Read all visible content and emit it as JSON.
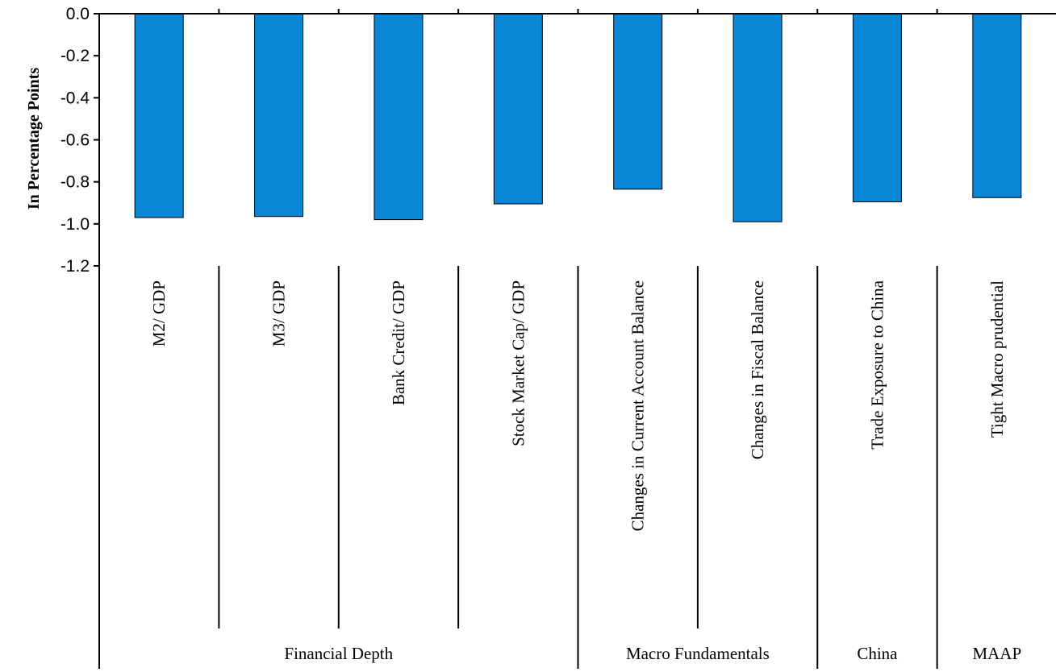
{
  "chart_data": {
    "type": "bar",
    "ylabel": "In Percentage Points",
    "ylim": [
      -1.2,
      0
    ],
    "yticks": [
      "0.0",
      "-0.2",
      "-0.4",
      "-0.6",
      "-0.8",
      "-1.0",
      "-1.2"
    ],
    "categories": [
      "M2/ GDP",
      "M3/ GDP",
      "Bank Credit/ GDP",
      "Stock Market Cap/ GDP",
      "Changes in Current Account Balance",
      "Changes in Fiscal Balance",
      "Trade Exposure to China",
      "Tight Macro prudential"
    ],
    "values": [
      -0.97,
      -0.965,
      -0.98,
      -0.905,
      -0.835,
      -0.99,
      -0.895,
      -0.875
    ],
    "groups": [
      {
        "label": "Financial Depth",
        "count": 4
      },
      {
        "label": "Macro Fundamentals",
        "count": 2
      },
      {
        "label": "China",
        "count": 1
      },
      {
        "label": "MAAP",
        "count": 1
      }
    ],
    "colors": {
      "bar": "#0a86d6"
    },
    "grid": false,
    "legend": "none"
  }
}
